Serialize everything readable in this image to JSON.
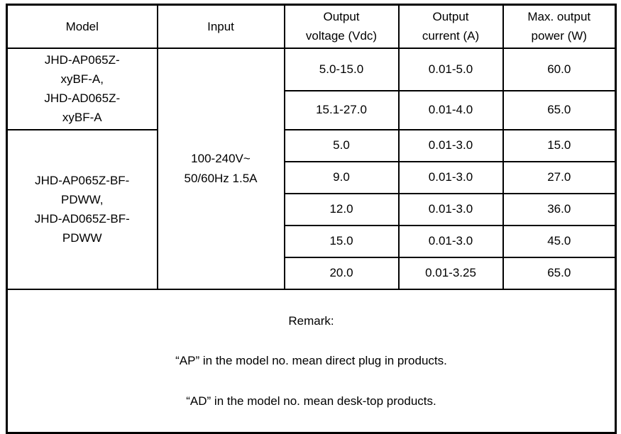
{
  "table": {
    "headers": {
      "model": "Model",
      "input": "Input",
      "voltage": "Output\nvoltage (Vdc)",
      "current": "Output\ncurrent (A)",
      "power": "Max. output\npower (W)"
    },
    "model_groups": {
      "group1": "JHD-AP065Z-\nxyBF-A,\nJHD-AD065Z-\nxyBF-A",
      "group2": "JHD-AP065Z-BF-\nPDWW,\nJHD-AD065Z-BF-\nPDWW"
    },
    "input_value": "100-240V~\n50/60Hz 1.5A",
    "rows": [
      {
        "voltage": "5.0-15.0",
        "current": "0.01-5.0",
        "power": "60.0"
      },
      {
        "voltage": "15.1-27.0",
        "current": "0.01-4.0",
        "power": "65.0"
      },
      {
        "voltage": "5.0",
        "current": "0.01-3.0",
        "power": "15.0"
      },
      {
        "voltage": "9.0",
        "current": "0.01-3.0",
        "power": "27.0"
      },
      {
        "voltage": "12.0",
        "current": "0.01-3.0",
        "power": "36.0"
      },
      {
        "voltage": "15.0",
        "current": "0.01-3.0",
        "power": "45.0"
      },
      {
        "voltage": "20.0",
        "current": "0.01-3.25",
        "power": "65.0"
      }
    ],
    "remark": {
      "title": "Remark:",
      "lines": [
        "“AP” in the model no. mean direct plug in products.",
        "“AD” in the model no. mean desk-top products."
      ]
    },
    "colors": {
      "border": "#000000",
      "text": "#000000",
      "background": "#ffffff"
    }
  }
}
